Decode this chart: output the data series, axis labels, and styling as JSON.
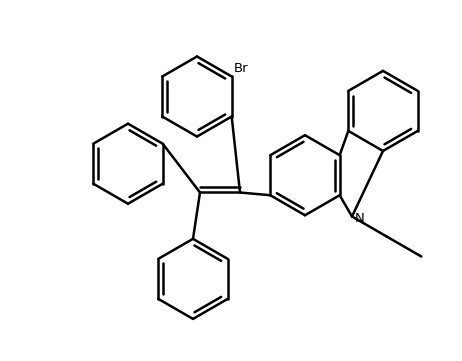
{
  "bg": "#ffffff",
  "fg": "#000000",
  "lw": 1.8,
  "lw2": 1.8,
  "fig_w": 4.62,
  "fig_h": 3.61,
  "dpi": 100
}
